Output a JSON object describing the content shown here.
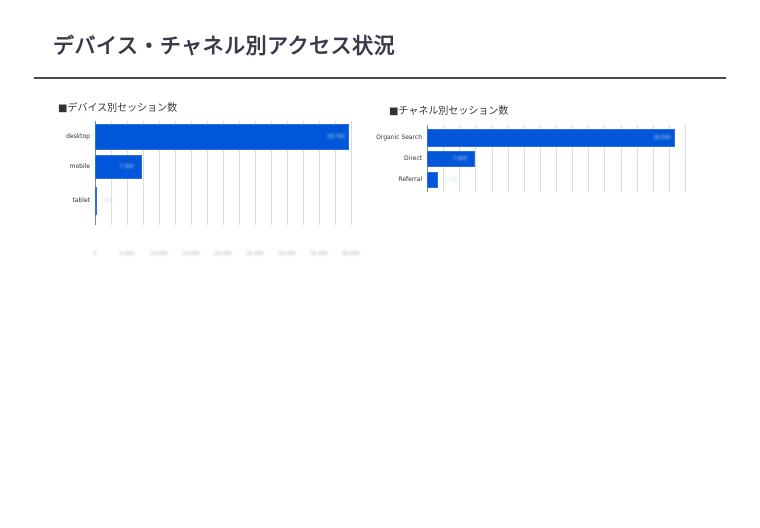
{
  "page": {
    "title": "デバイス・チャネル別アクセス状況"
  },
  "chart_data": [
    {
      "type": "bar",
      "orientation": "horizontal",
      "title": "■デバイス別セッション数",
      "categories": [
        "desktop",
        "mobile",
        "tablet"
      ],
      "values": [
        39700,
        7300,
        300
      ],
      "value_labels": [
        "39,700",
        "7,300",
        "300"
      ],
      "xlabel": "",
      "ylabel": "",
      "xlim": [
        0,
        40000
      ],
      "xticks": [
        "0",
        "5,000",
        "10,000",
        "15,000",
        "20,000",
        "25,000",
        "30,000",
        "35,000",
        "40,000"
      ],
      "grid": true,
      "color": "#0056d8"
    },
    {
      "type": "bar",
      "orientation": "horizontal",
      "title": "■チャネル別セッション数",
      "categories": [
        "Organic Search",
        "Direct",
        "Referral"
      ],
      "values": [
        38500,
        7400,
        1700
      ],
      "value_labels": [
        "38,500",
        "7,400",
        "1,700"
      ],
      "xlabel": "",
      "ylabel": "",
      "xlim": [
        0,
        40000
      ],
      "grid": true,
      "color": "#0056d8"
    }
  ]
}
